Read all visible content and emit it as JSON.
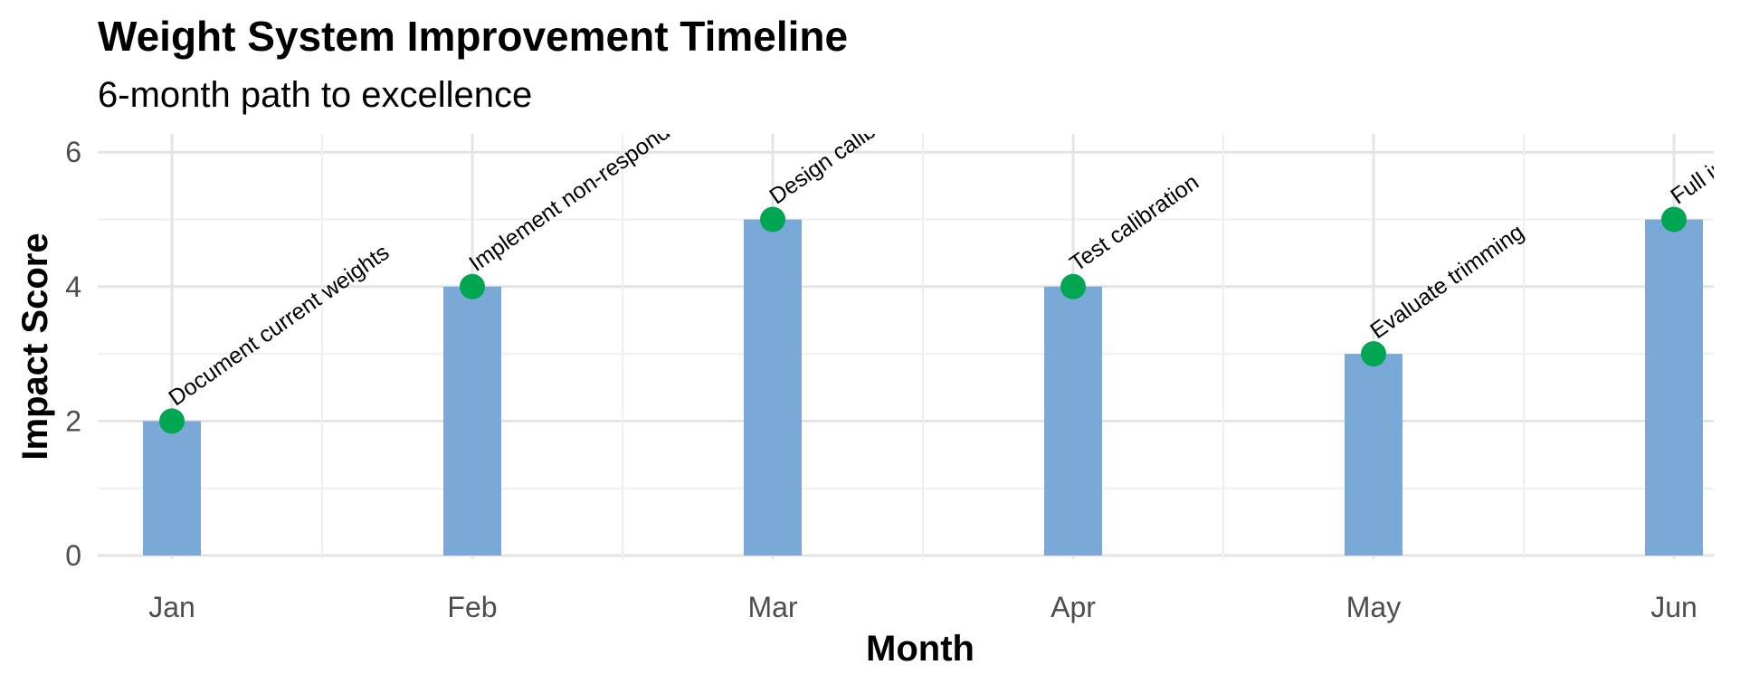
{
  "chart_data": {
    "type": "bar",
    "title": "Weight System Improvement Timeline",
    "subtitle": "6-month path to excellence",
    "xlabel": "Month",
    "ylabel": "Impact Score",
    "categories": [
      "Jan",
      "Feb",
      "Mar",
      "Apr",
      "May",
      "Jun"
    ],
    "values": [
      2,
      4,
      5,
      4,
      3,
      5
    ],
    "point_labels": [
      "Document current weights",
      "Implement non-responder penalty",
      "Design calibration",
      "Test calibration",
      "Evaluate trimming",
      "Full implementation"
    ],
    "ylim": [
      0,
      6.3
    ],
    "y_ticks": [
      0,
      2,
      4,
      6
    ],
    "grid": true,
    "colors": {
      "bar": "#7aa9d8",
      "point": "#00a651"
    }
  }
}
